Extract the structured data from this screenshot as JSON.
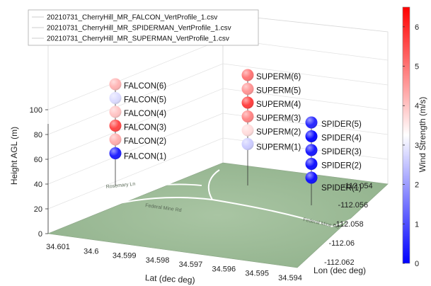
{
  "chart_data": {
    "type": "scatter",
    "subtype": "3d-vertical-profile",
    "xlabel": "Lat (dec deg)",
    "ylabel": "Lon (dec deg)",
    "zlabel": "Height AGL (m)",
    "colorbar_label": "Wind Strength (m/s)",
    "colormap": "blue-white-red",
    "clim": [
      0,
      6.5
    ],
    "colorbar_ticks": [
      "0",
      "1",
      "2",
      "3",
      "4",
      "5",
      "6"
    ],
    "xlim": [
      34.594,
      34.601
    ],
    "ylim": [
      -112.062,
      -112.054
    ],
    "zlim": [
      0,
      100
    ],
    "x_ticks": [
      "34.601",
      "34.6",
      "34.599",
      "34.598",
      "34.597",
      "34.596",
      "34.595",
      "34.594"
    ],
    "y_ticks": [
      "-112.054",
      "-112.056",
      "-112.058",
      "-112.06",
      "-112.062"
    ],
    "z_ticks": [
      "0",
      "20",
      "40",
      "60",
      "80",
      "100"
    ],
    "grid": true,
    "legend_position": "top-left",
    "legend": [
      "20210731_CherryHill_MR_FALCON_VertProfile_1.csv",
      "20210731_CherryHill_MR_SPIDERMAN_VertProfile_1.csv",
      "20210731_CherryHill_MR_SUPERMAN_VertProfile_1.csv"
    ],
    "series": [
      {
        "name": "20210731_CherryHill_MR_FALCON_VertProfile_1.csv",
        "points": [
          {
            "label": "FALCON(1)",
            "height": 35,
            "wind": 0.4
          },
          {
            "label": "FALCON(2)",
            "height": 50,
            "wind": 4.3
          },
          {
            "label": "FALCON(3)",
            "height": 65,
            "wind": 5.6
          },
          {
            "label": "FALCON(4)",
            "height": 80,
            "wind": 4.0
          },
          {
            "label": "FALCON(5)",
            "height": 95,
            "wind": 2.8
          },
          {
            "label": "FALCON(6)",
            "height": 110,
            "wind": 4.2
          }
        ]
      },
      {
        "name": "20210731_CherryHill_MR_SPIDERMAN_VertProfile_1.csv",
        "points": [
          {
            "label": "SPIDER(1)",
            "height": 30,
            "wind": 0.2
          },
          {
            "label": "SPIDER(2)",
            "height": 45,
            "wind": 0.2
          },
          {
            "label": "SPIDER(3)",
            "height": 60,
            "wind": 0.3
          },
          {
            "label": "SPIDER(4)",
            "height": 75,
            "wind": 0.1
          },
          {
            "label": "SPIDER(5)",
            "height": 90,
            "wind": 0.5
          }
        ]
      },
      {
        "name": "20210731_CherryHill_MR_SUPERMAN_VertProfile_1.csv",
        "points": [
          {
            "label": "SUPERM(1)",
            "height": 45,
            "wind": 2.6
          },
          {
            "label": "SUPERM(2)",
            "height": 60,
            "wind": 3.7
          },
          {
            "label": "SUPERM(3)",
            "height": 75,
            "wind": 4.8
          },
          {
            "label": "SUPERM(4)",
            "height": 90,
            "wind": 5.7
          },
          {
            "label": "SUPERM(5)",
            "height": 105,
            "wind": 4.6
          },
          {
            "label": "SUPERM(6)",
            "height": 120,
            "wind": 5.0
          }
        ]
      }
    ],
    "map_labels": [
      "Federal Mine Rd",
      "Federal Mine Rd",
      "Rosemary Ln"
    ]
  }
}
